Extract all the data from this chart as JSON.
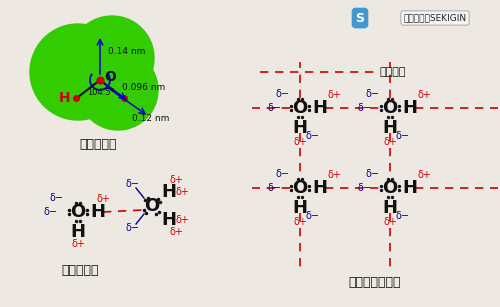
{
  "bg_color": "#ede9e2",
  "blk": "#111111",
  "red": "#cc0000",
  "blu": "#00008b",
  "grn": "#33cc00",
  "section1_label": "水分子の形",
  "section2_label": "２分子会合",
  "section3_label": "複数分子の会合",
  "hbond_label": "水素結合",
  "wm_s": "S",
  "wm_text": "技術情報館SEKIGIN",
  "dim1": "0.14 nm",
  "dim2": "0.096 nm",
  "dim3": "0.12 nm",
  "angle": "104.5°"
}
